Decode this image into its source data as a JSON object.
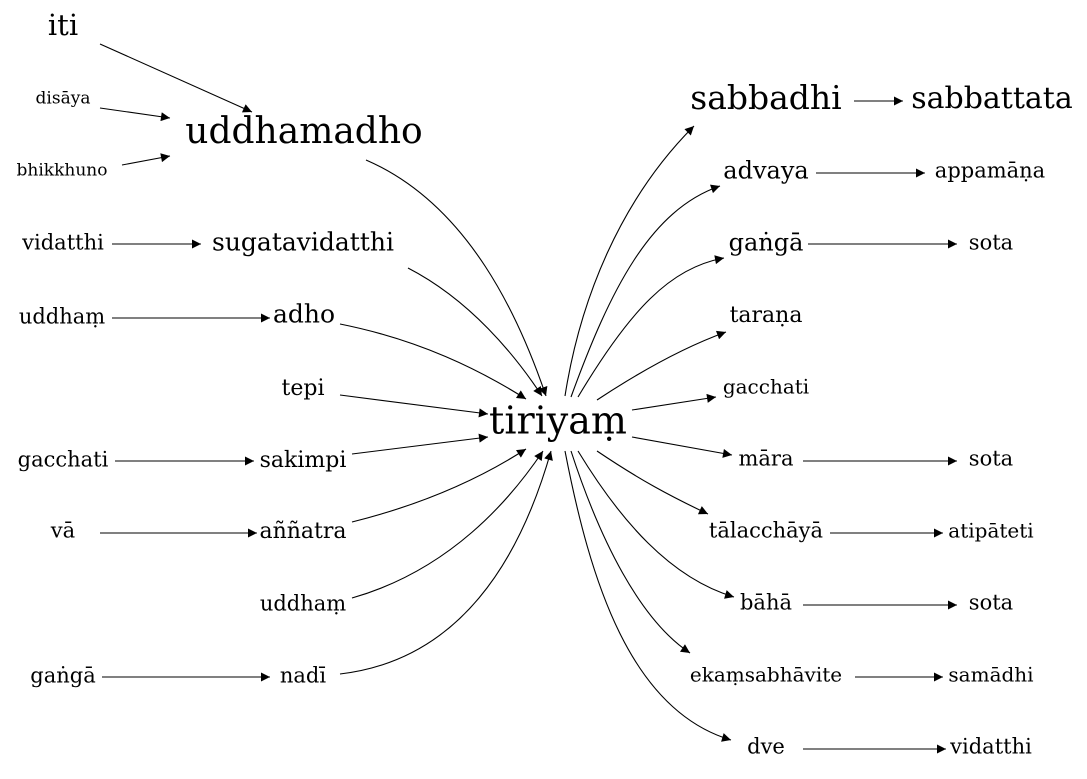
{
  "nodes": {
    "iti": "iti",
    "disaya": "disāya",
    "bhikkhuno": "bhikkhuno",
    "uddhamadho": "uddhamadho",
    "vidatthi_l": "vidatthi",
    "sugatavidatthi": "sugatavidatthi",
    "uddham_l1": "uddhaṃ",
    "adho": "adho",
    "tepi": "tepi",
    "gacchati_l": "gacchati",
    "sakimpi": "sakimpi",
    "va": "vā",
    "annatra": "aññatra",
    "uddham_l2": "uddhaṃ",
    "ganga_l": "gaṅgā",
    "nadi": "nadī",
    "tiriyam": "tiriyaṃ",
    "sabbadhi": "sabbadhi",
    "sabbattata": "sabbattata",
    "advaya": "advaya",
    "appamana": "appamāṇa",
    "ganga_r": "gaṅgā",
    "sota_1": "sota",
    "tarana": "taraṇa",
    "gacchati_r": "gacchati",
    "mara": "māra",
    "sota_2": "sota",
    "talacchaya": "tālacchāyā",
    "atipateti": "atipāteti",
    "baha": "bāhā",
    "sota_3": "sota",
    "ekamsabhavite": "ekaṃsabhāvite",
    "samadhi": "samādhi",
    "dve": "dve",
    "vidatthi_r": "vidatthi"
  }
}
